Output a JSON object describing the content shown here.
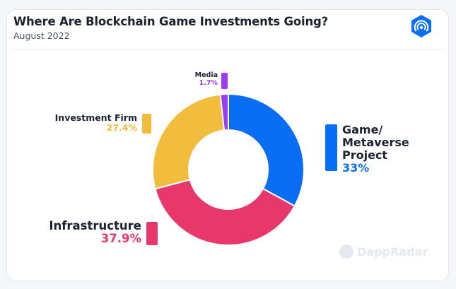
{
  "header": {
    "title": "Where Are Blockchain Game Investments Going?",
    "subtitle": "August 2022",
    "logo_icon": "dappradar-logo-icon"
  },
  "watermark": {
    "text": "DappRadar"
  },
  "chart_data": {
    "type": "pie",
    "variant": "donut",
    "title": "Where Are Blockchain Game Investments Going?",
    "subtitle": "August 2022",
    "slices": [
      {
        "label": "Game/ Metaverse Project",
        "value": 33,
        "display": "33%",
        "color": "#0a6ef5"
      },
      {
        "label": "Infrastructure",
        "value": 37.9,
        "display": "37.9%",
        "color": "#e8386b"
      },
      {
        "label": "Investment Firm",
        "value": 27.4,
        "display": "27.4%",
        "color": "#f2bd3c"
      },
      {
        "label": "Media",
        "value": 1.7,
        "display": "1.7%",
        "color": "#9b3cf2"
      }
    ]
  }
}
